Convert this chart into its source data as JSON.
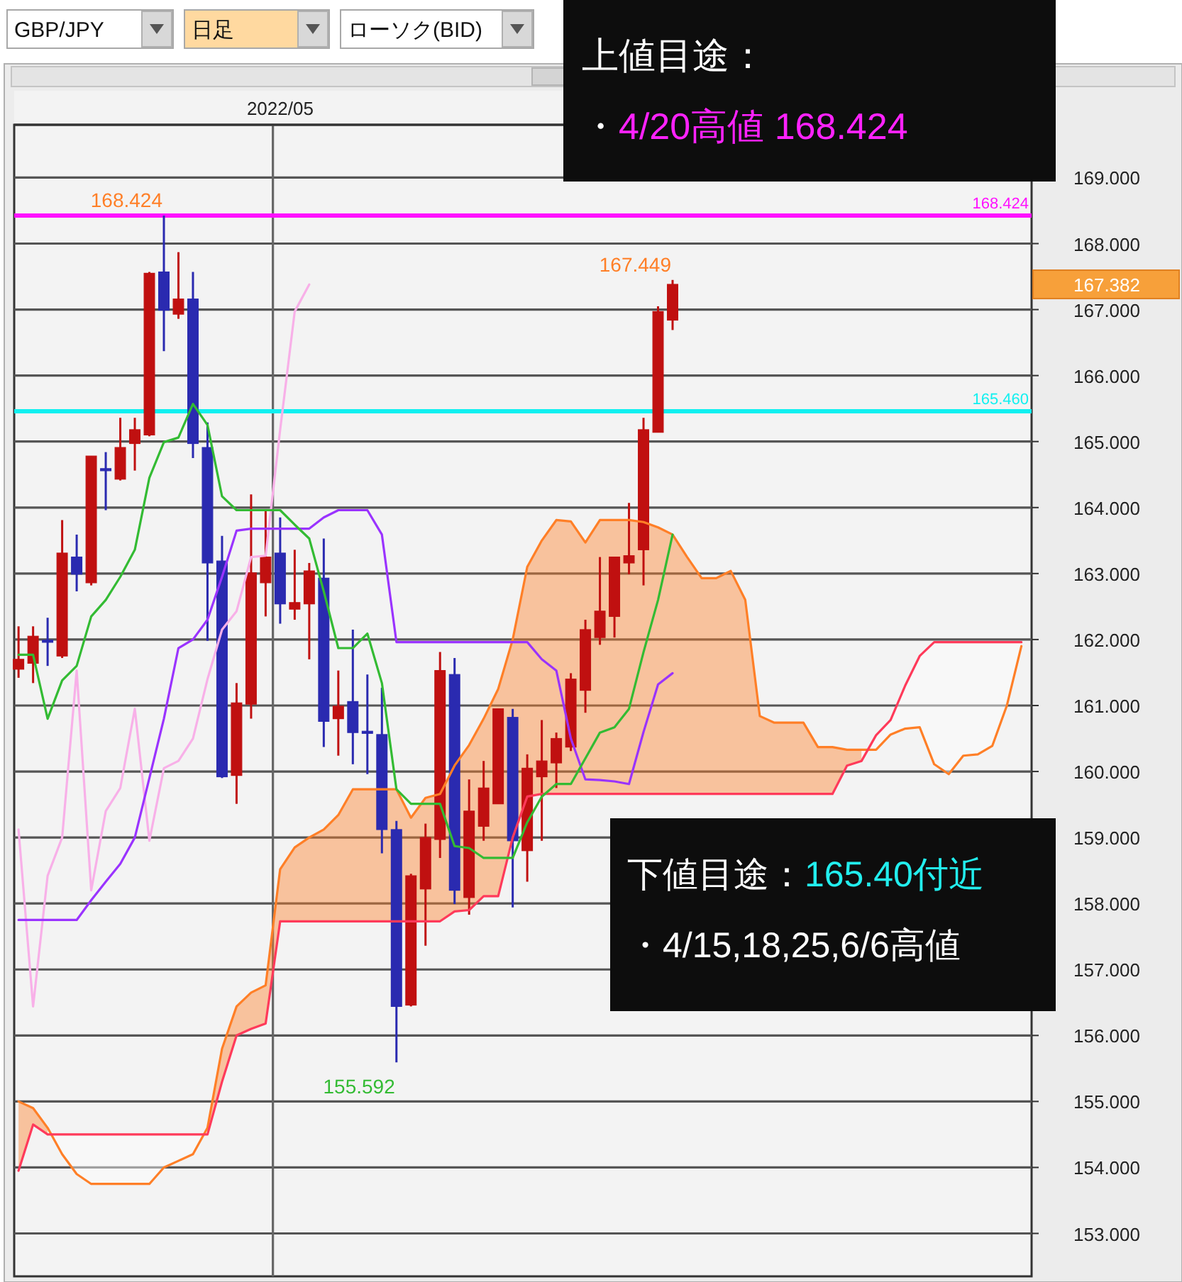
{
  "chart_data": {
    "type": "candlestick",
    "categories": [
      null,
      null,
      null,
      null,
      null,
      null,
      null,
      null,
      null,
      null,
      null,
      null,
      null,
      null,
      null,
      null,
      null,
      null,
      "2022/05",
      null,
      null,
      null,
      null,
      null,
      null,
      null,
      null,
      null,
      null,
      null,
      null,
      null,
      null,
      null,
      null,
      null,
      null,
      null,
      null,
      null,
      null,
      null,
      null,
      null,
      null,
      null,
      null,
      null,
      null,
      null,
      null,
      null,
      null,
      null,
      null,
      null,
      null,
      null,
      null,
      null,
      null,
      null,
      null,
      null,
      null,
      null,
      null,
      null,
      null,
      null
    ],
    "ohlc": [
      [
        161.55,
        162.2,
        161.42,
        161.7
      ],
      [
        161.64,
        162.2,
        161.34,
        162.05
      ],
      [
        161.99,
        162.33,
        161.6,
        161.97
      ],
      [
        161.75,
        163.81,
        161.72,
        163.31
      ],
      [
        163.25,
        163.59,
        162.73,
        162.99
      ],
      [
        162.86,
        164.78,
        162.82,
        164.78
      ],
      [
        164.59,
        164.84,
        163.96,
        164.57
      ],
      [
        164.43,
        165.36,
        164.41,
        164.91
      ],
      [
        164.97,
        165.36,
        164.56,
        165.18
      ],
      [
        165.1,
        167.57,
        165.08,
        167.55
      ],
      [
        167.57,
        168.424,
        166.37,
        166.99
      ],
      [
        166.93,
        167.87,
        166.86,
        167.16
      ],
      [
        167.16,
        167.57,
        164.75,
        164.97
      ],
      [
        164.91,
        165.29,
        161.98,
        163.16
      ],
      [
        163.19,
        163.57,
        159.9,
        159.92
      ],
      [
        159.94,
        161.34,
        159.51,
        161.04
      ],
      [
        161.02,
        164.2,
        160.8,
        163.01
      ],
      [
        162.86,
        163.96,
        162.35,
        163.25
      ],
      [
        163.31,
        163.85,
        162.24,
        162.54
      ],
      [
        162.46,
        163.36,
        162.3,
        162.56
      ],
      [
        162.54,
        163.16,
        161.7,
        163.04
      ],
      [
        162.93,
        163.53,
        160.37,
        160.76
      ],
      [
        160.8,
        161.53,
        160.24,
        160.99
      ],
      [
        161.06,
        162.15,
        160.11,
        160.59
      ],
      [
        160.61,
        161.47,
        159.96,
        160.59
      ],
      [
        160.56,
        161.27,
        158.76,
        159.12
      ],
      [
        159.12,
        159.25,
        155.592,
        156.44
      ],
      [
        156.46,
        158.45,
        156.44,
        158.42
      ],
      [
        158.22,
        159.21,
        157.36,
        159.0
      ],
      [
        158.97,
        161.81,
        158.69,
        161.53
      ],
      [
        161.47,
        161.72,
        157.99,
        158.2
      ],
      [
        158.09,
        159.88,
        157.83,
        159.4
      ],
      [
        159.17,
        160.16,
        158.95,
        159.75
      ],
      [
        159.51,
        160.95,
        159.51,
        160.95
      ],
      [
        160.82,
        160.95,
        157.94,
        158.95
      ],
      [
        158.8,
        160.26,
        158.33,
        160.05
      ],
      [
        159.92,
        160.78,
        158.95,
        160.16
      ],
      [
        160.13,
        160.59,
        159.75,
        160.5
      ],
      [
        160.37,
        161.49,
        160.31,
        161.4
      ],
      [
        161.23,
        162.3,
        160.89,
        162.15
      ],
      [
        162.03,
        163.25,
        161.92,
        162.43
      ],
      [
        162.35,
        163.25,
        162.03,
        163.25
      ],
      [
        163.16,
        164.07,
        162.99,
        163.27
      ],
      [
        163.36,
        165.36,
        162.82,
        165.18
      ],
      [
        165.14,
        167.05,
        165.14,
        166.97
      ],
      [
        166.84,
        167.449,
        166.69,
        167.382
      ],
      null,
      null,
      null,
      null,
      null,
      null,
      null,
      null,
      null,
      null,
      null,
      null,
      null,
      null,
      null,
      null,
      null,
      null,
      null,
      null,
      null,
      null,
      null,
      null
    ],
    "colors": [
      "#c01010",
      "#c01010",
      "#2a2ab0",
      "#c01010",
      "#2a2ab0",
      "#c01010",
      "#2a2ab0",
      "#c01010",
      "#c01010",
      "#c01010",
      "#2a2ab0",
      "#c01010",
      "#2a2ab0",
      "#2a2ab0",
      "#2a2ab0",
      "#c01010",
      "#c01010",
      "#c01010",
      "#2a2ab0",
      "#c01010",
      "#c01010",
      "#2a2ab0",
      "#c01010",
      "#2a2ab0",
      "#2a2ab0",
      "#2a2ab0",
      "#2a2ab0",
      "#c01010",
      "#c01010",
      "#c01010",
      "#2a2ab0",
      "#c01010",
      "#c01010",
      "#c01010",
      "#2a2ab0",
      "#c01010",
      "#c01010",
      "#c01010",
      "#c01010",
      "#c01010",
      "#c01010",
      "#c01010",
      "#c01010",
      "#c01010",
      "#c01010",
      "#c01010",
      null,
      null,
      null,
      null,
      null,
      null,
      null,
      null,
      null,
      null,
      null,
      null,
      null,
      null,
      null,
      null,
      null,
      null,
      null,
      null,
      null,
      null,
      null,
      null
    ],
    "series": [
      {
        "type": "line",
        "color": "#ff7f27",
        "values": [
          155.0,
          154.9,
          154.6,
          154.2,
          153.9,
          153.75,
          153.75,
          153.75,
          153.75,
          153.75,
          154.0,
          154.1,
          154.2,
          154.6,
          155.8,
          156.44,
          156.65,
          156.76,
          158.52,
          158.85,
          159.0,
          159.12,
          159.34,
          159.73,
          159.73,
          159.73,
          159.73,
          159.3,
          159.6,
          159.66,
          160.09,
          160.4,
          160.8,
          161.25,
          162.0,
          163.1,
          163.5,
          163.81,
          163.79,
          163.47,
          163.81,
          163.81,
          163.81,
          163.78,
          163.7,
          163.59,
          163.25,
          162.93,
          162.93,
          163.04,
          162.6,
          160.84,
          160.74,
          160.74,
          160.74,
          160.37,
          160.37,
          160.33,
          160.33,
          160.33,
          160.56,
          160.65,
          160.67,
          160.11,
          159.96,
          160.24,
          160.26,
          160.39,
          161.0,
          161.9
        ]
      },
      {
        "type": "line",
        "color": "#ff3a5a",
        "values": [
          153.95,
          154.65,
          154.5,
          154.5,
          154.5,
          154.5,
          154.5,
          154.5,
          154.5,
          154.5,
          154.5,
          154.5,
          154.5,
          154.5,
          155.3,
          156.0,
          156.1,
          156.18,
          157.73,
          157.73,
          157.73,
          157.73,
          157.73,
          157.73,
          157.73,
          157.73,
          157.73,
          157.73,
          157.73,
          157.73,
          157.88,
          157.9,
          158.11,
          158.11,
          159.0,
          159.62,
          159.66,
          159.66,
          159.66,
          159.66,
          159.66,
          159.66,
          159.66,
          159.66,
          159.66,
          159.66,
          159.66,
          159.66,
          159.66,
          159.66,
          159.66,
          159.66,
          159.66,
          159.66,
          159.66,
          159.66,
          159.66,
          160.09,
          160.16,
          160.55,
          160.78,
          161.3,
          161.75,
          161.96,
          161.96,
          161.96,
          161.96,
          161.96,
          161.96,
          161.96
        ]
      },
      {
        "type": "line",
        "color": "#f8b0e8",
        "values": [
          159.12,
          156.44,
          158.42,
          159.0,
          161.53,
          158.2,
          159.4,
          159.75,
          160.95,
          158.95,
          160.05,
          160.16,
          160.5,
          161.4,
          162.15,
          162.43,
          163.25,
          163.27,
          165.18,
          166.97,
          167.38,
          null,
          null,
          null,
          null,
          null,
          null,
          null,
          null,
          null,
          null,
          null,
          null,
          null,
          null,
          null,
          null,
          null,
          null,
          null,
          null,
          null,
          null,
          null,
          null,
          null,
          null,
          null,
          null,
          null,
          null,
          null,
          null,
          null,
          null,
          null,
          null,
          null,
          null,
          null,
          null,
          null,
          null,
          null,
          null,
          null,
          null,
          null,
          null,
          null
        ]
      },
      {
        "type": "line",
        "color": "#9a33ff",
        "values": [
          157.75,
          157.75,
          157.75,
          157.75,
          157.75,
          158.05,
          158.33,
          158.6,
          159.0,
          159.9,
          160.8,
          161.87,
          162.0,
          162.3,
          162.95,
          163.65,
          163.68,
          163.68,
          163.68,
          163.68,
          163.68,
          163.85,
          163.96,
          163.96,
          163.96,
          163.59,
          161.96,
          161.96,
          161.96,
          161.96,
          161.96,
          161.96,
          161.96,
          161.96,
          161.96,
          161.96,
          161.7,
          161.53,
          160.5,
          159.88,
          159.87,
          159.85,
          159.81,
          160.6,
          161.32,
          161.49,
          null,
          null,
          null,
          null,
          null,
          null,
          null,
          null,
          null,
          null,
          null,
          null,
          null,
          null,
          null,
          null,
          null,
          null,
          null,
          null,
          null,
          null,
          null,
          null
        ]
      },
      {
        "type": "line",
        "color": "#33bb33",
        "values": [
          161.77,
          161.77,
          160.8,
          161.38,
          161.6,
          162.35,
          162.6,
          162.95,
          163.36,
          164.45,
          164.99,
          165.06,
          165.57,
          165.25,
          164.17,
          163.96,
          163.96,
          163.96,
          163.96,
          163.74,
          163.53,
          162.73,
          161.87,
          161.87,
          162.09,
          161.34,
          159.73,
          159.51,
          159.51,
          159.51,
          158.87,
          158.84,
          158.69,
          158.69,
          158.69,
          159.23,
          159.62,
          159.81,
          159.81,
          160.2,
          160.59,
          160.67,
          160.95,
          161.81,
          162.6,
          163.59,
          null,
          null,
          null,
          null,
          null,
          null,
          null,
          null,
          null,
          null,
          null,
          null,
          null,
          null,
          null,
          null,
          null,
          null,
          null,
          null,
          null,
          null,
          null,
          null
        ]
      }
    ],
    "ylim": [
      152.35,
      169.8
    ],
    "yticks": [
      {
        "value": 153,
        "label": "153.000"
      },
      {
        "value": 154,
        "label": "154.000"
      },
      {
        "value": 155,
        "label": "155.000"
      },
      {
        "value": 156,
        "label": "156.000"
      },
      {
        "value": 157,
        "label": "157.000"
      },
      {
        "value": 158,
        "label": "158.000"
      },
      {
        "value": 159,
        "label": "159.000"
      },
      {
        "value": 160,
        "label": "160.000"
      },
      {
        "value": 161,
        "label": "161.000"
      },
      {
        "value": 162,
        "label": "162.000"
      },
      {
        "value": 163,
        "label": "163.000"
      },
      {
        "value": 164,
        "label": "164.000"
      },
      {
        "value": 165,
        "label": "165.000"
      },
      {
        "value": 166,
        "label": "166.000"
      },
      {
        "value": 167,
        "label": "167.000"
      },
      {
        "value": 168,
        "label": "168.000"
      },
      {
        "value": 169,
        "label": "169.000"
      }
    ],
    "grid": true,
    "ref_lines": [
      {
        "axis": "y",
        "value": 168.424,
        "label": "168.424",
        "color": "#ff10ff"
      },
      {
        "axis": "y",
        "value": 165.46,
        "label": "165.460",
        "color": "#10f0f0"
      }
    ],
    "annotations": [
      "GBP/JPY",
      "日足",
      "ローソク(BID)",
      "上値目途：",
      "・",
      "4/20高値 168.424",
      "下値目途：",
      "165.40付近",
      "・4/15,18,25,6/6高値",
      "168.424",
      "167.449",
      "155.592",
      "167.382"
    ]
  }
}
